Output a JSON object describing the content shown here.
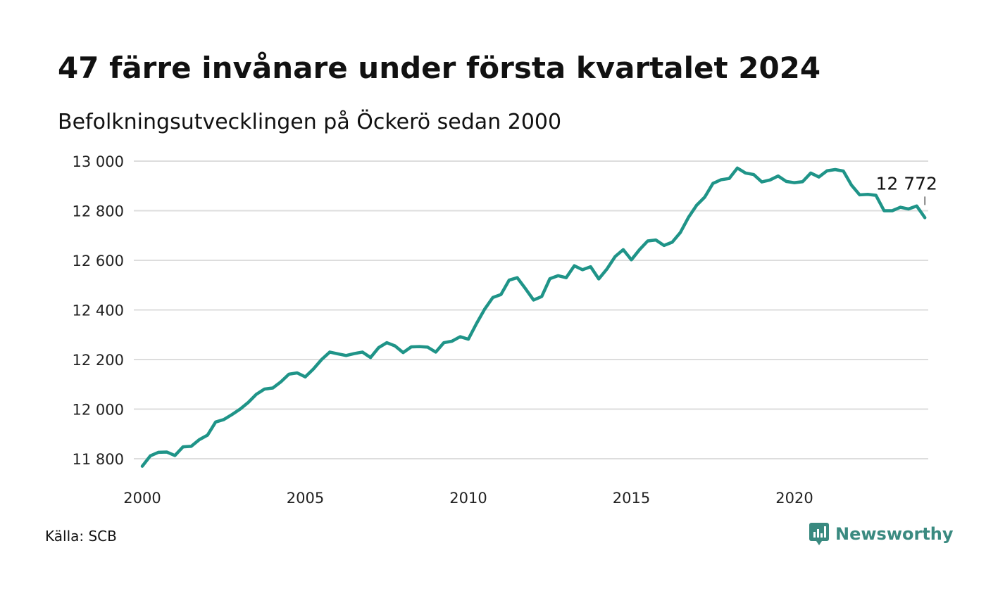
{
  "header": {
    "title": "47 färre invånare under första kvartalet 2024",
    "subtitle": "Befolkningsutvecklingen på Öckerö sedan 2000"
  },
  "footer": {
    "source": "Källa: SCB",
    "brand": "Newsworthy",
    "brand_icon": "newsworthy-logo-icon"
  },
  "colors": {
    "line": "#1f9488",
    "grid": "#dddddd",
    "brand": "#3a8a80"
  },
  "chart_data": {
    "type": "line",
    "x_ticks": [
      2000,
      2005,
      2010,
      2015,
      2020
    ],
    "x_tick_labels": [
      "2000",
      "2005",
      "2010",
      "2015",
      "2020"
    ],
    "y_ticks": [
      11800,
      12000,
      12200,
      12400,
      12600,
      12800,
      13000
    ],
    "y_tick_labels": [
      "11 800",
      "12 000",
      "12 200",
      "12 400",
      "12 600",
      "12 800",
      "13 000"
    ],
    "xlim": [
      2000,
      2024.5
    ],
    "ylim": [
      11770,
      13010
    ],
    "grid": "horizontal",
    "end_label": "12 772",
    "series": [
      {
        "x": [
          2000.0,
          2000.25,
          2000.5,
          2000.75,
          2001.0,
          2001.25,
          2001.5,
          2001.75,
          2002.0,
          2002.25,
          2002.5,
          2002.75,
          2003.0,
          2003.25,
          2003.5,
          2003.75,
          2004.0,
          2004.25,
          2004.5,
          2004.75,
          2005.0,
          2005.25,
          2005.5,
          2005.75,
          2006.0,
          2006.25,
          2006.5,
          2006.75,
          2007.0,
          2007.25,
          2007.5,
          2007.75,
          2008.0,
          2008.25,
          2008.5,
          2008.75,
          2009.0,
          2009.25,
          2009.5,
          2009.75,
          2010.0,
          2010.25,
          2010.5,
          2010.75,
          2011.0,
          2011.25,
          2011.5,
          2011.75,
          2012.0,
          2012.25,
          2012.5,
          2012.75,
          2013.0,
          2013.25,
          2013.5,
          2013.75,
          2014.0,
          2014.25,
          2014.5,
          2014.75,
          2015.0,
          2015.25,
          2015.5,
          2015.75,
          2016.0,
          2016.25,
          2016.5,
          2016.75,
          2017.0,
          2017.25,
          2017.5,
          2017.75,
          2018.0,
          2018.25,
          2018.5,
          2018.75,
          2019.0,
          2019.25,
          2019.5,
          2019.75,
          2020.0,
          2020.25,
          2020.5,
          2020.75,
          2021.0,
          2021.25,
          2021.5,
          2021.75,
          2022.0,
          2022.25,
          2022.5,
          2022.75,
          2023.0,
          2023.25,
          2023.5,
          2023.75,
          2024.0
        ],
        "values": [
          11770,
          11812,
          11826,
          11827,
          11813,
          11848,
          11850,
          11877,
          11895,
          11948,
          11958,
          11978,
          12000,
          12027,
          12060,
          12081,
          12085,
          12110,
          12141,
          12146,
          12130,
          12162,
          12200,
          12230,
          12223,
          12216,
          12224,
          12230,
          12208,
          12248,
          12268,
          12255,
          12228,
          12251,
          12252,
          12250,
          12230,
          12268,
          12274,
          12292,
          12282,
          12345,
          12403,
          12450,
          12462,
          12520,
          12530,
          12486,
          12440,
          12454,
          12526,
          12538,
          12530,
          12578,
          12562,
          12574,
          12525,
          12565,
          12615,
          12643,
          12602,
          12643,
          12678,
          12682,
          12660,
          12673,
          12712,
          12773,
          12822,
          12855,
          12910,
          12925,
          12930,
          12972,
          12952,
          12946,
          12916,
          12924,
          12940,
          12918,
          12913,
          12917,
          12952,
          12936,
          12961,
          12966,
          12960,
          12903,
          12864,
          12866,
          12862,
          12800,
          12800,
          12814,
          12807,
          12819,
          12772
        ]
      }
    ]
  }
}
